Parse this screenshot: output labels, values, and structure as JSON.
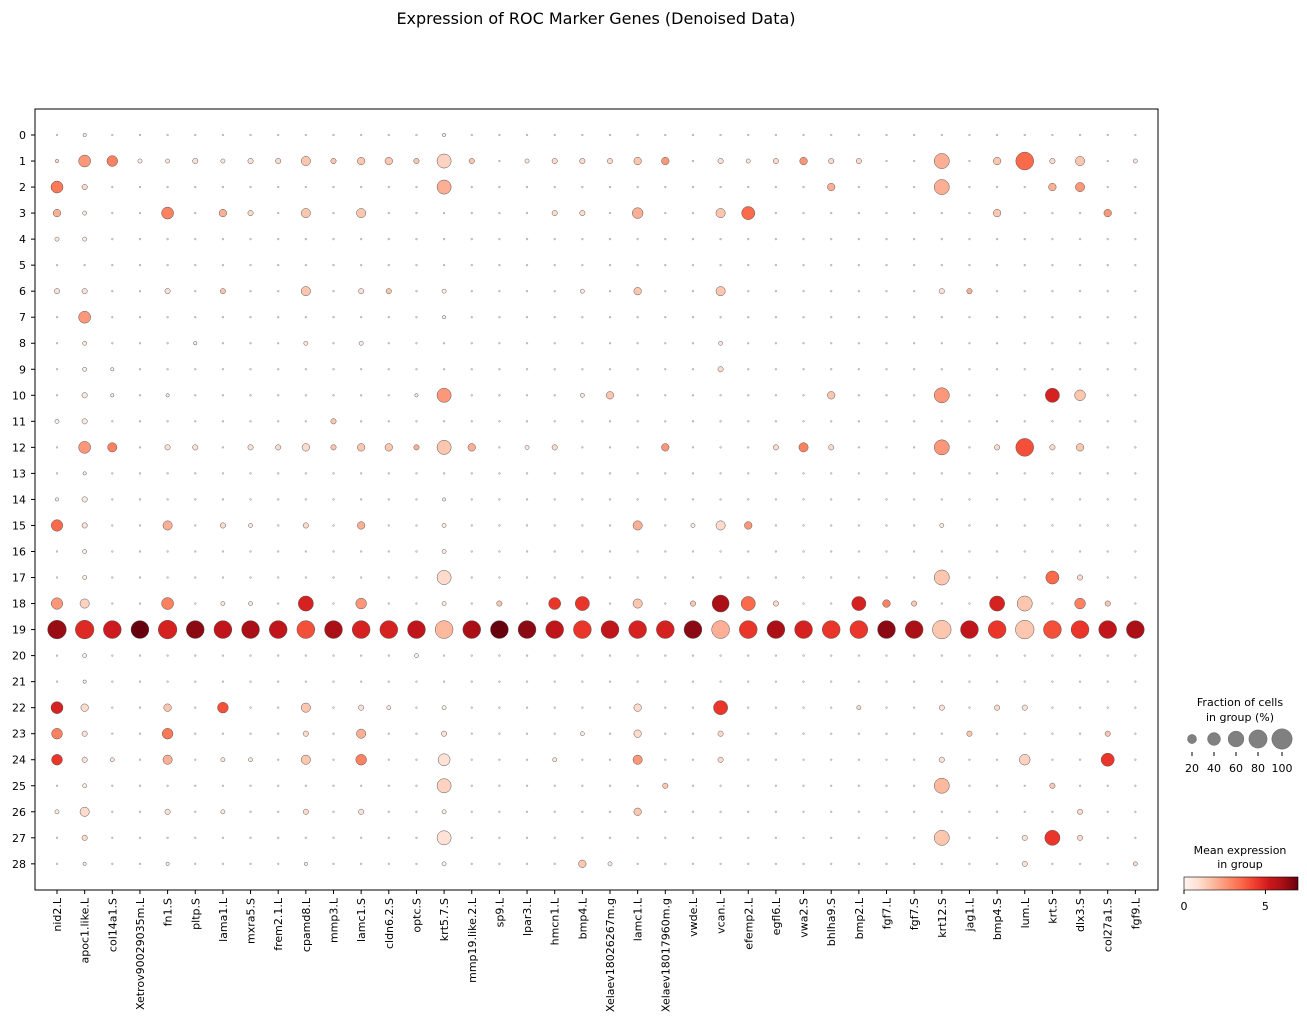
{
  "chart_data": {
    "type": "dotplot",
    "title": "Expression of ROC Marker Genes (Denoised Data)",
    "xlabel": "",
    "ylabel": "",
    "genes": [
      "nid2.L",
      "apoc1.like.L",
      "col14a1.S",
      "Xetrov90029035m.L",
      "fn1.S",
      "pltp.S",
      "lama1.L",
      "mxra5.S",
      "frem2.1.L",
      "cpamd8.L",
      "mmp3.L",
      "lamc1.S",
      "cldn6.2.S",
      "optc.S",
      "krt5.7.S",
      "mmp19.like.2.L",
      "sp9.L",
      "lpar3.L",
      "hmcn1.L",
      "bmp4.L",
      "Xelaev18026267m.g",
      "lamc1.L",
      "Xelaev18017960m.g",
      "vwde.L",
      "vcan.L",
      "efemp2.L",
      "egfl6.L",
      "vwa2.S",
      "bhlha9.S",
      "bmp2.L",
      "fgf7.L",
      "fgf7.S",
      "krt12.S",
      "jag1.L",
      "bmp4.S",
      "lum.L",
      "krt.S",
      "dlx3.S",
      "col27a1.S",
      "fgf9.L"
    ],
    "groups": [
      "0",
      "1",
      "2",
      "3",
      "4",
      "5",
      "6",
      "7",
      "8",
      "9",
      "10",
      "11",
      "12",
      "13",
      "14",
      "15",
      "16",
      "17",
      "18",
      "19",
      "20",
      "21",
      "22",
      "23",
      "24",
      "25",
      "26",
      "27",
      "28"
    ],
    "fraction_legend": {
      "title_line1": "Fraction of cells",
      "title_line2": "in group (%)",
      "sizes": [
        20,
        40,
        60,
        80,
        100
      ],
      "labels": [
        "20",
        "40",
        "60",
        "80",
        "100"
      ]
    },
    "color_legend": {
      "title_line1": "Mean expression",
      "title_line2": "in group",
      "range": [
        0,
        7
      ],
      "ticks": [
        0,
        5
      ],
      "tick_labels": [
        "0",
        "5"
      ],
      "colormap": "Reds"
    },
    "dot_max_fraction": 100,
    "dots": [
      [
        1,
        1,
        2,
        1
      ],
      [
        1,
        2,
        25,
        3.2
      ],
      [
        1,
        3,
        10,
        2
      ],
      [
        1,
        4,
        3,
        0.5
      ],
      [
        1,
        6,
        5,
        0.8
      ],
      [
        1,
        11,
        3,
        0.3
      ],
      [
        1,
        15,
        23,
        3.5
      ],
      [
        1,
        18,
        23,
        2.5
      ],
      [
        1,
        19,
        60,
        6.3
      ],
      [
        1,
        22,
        25,
        5
      ],
      [
        1,
        23,
        20,
        3
      ],
      [
        1,
        24,
        20,
        4.5
      ],
      [
        1,
        26,
        3,
        0.5
      ],
      [
        1,
        14,
        2,
        0.3
      ],
      [
        2,
        0,
        2,
        0.3
      ],
      [
        2,
        1,
        25,
        2.5
      ],
      [
        2,
        2,
        5,
        1
      ],
      [
        2,
        3,
        3,
        0.5
      ],
      [
        2,
        6,
        5,
        0.8
      ],
      [
        2,
        7,
        25,
        2.5
      ],
      [
        2,
        8,
        3,
        0.5
      ],
      [
        2,
        9,
        3,
        0.3
      ],
      [
        2,
        10,
        5,
        0.5
      ],
      [
        2,
        11,
        5,
        0.5
      ],
      [
        2,
        12,
        25,
        2.5
      ],
      [
        2,
        13,
        2,
        0.3
      ],
      [
        2,
        14,
        5,
        0.5
      ],
      [
        2,
        15,
        5,
        0.8
      ],
      [
        2,
        16,
        3,
        0.3
      ],
      [
        2,
        17,
        3,
        0.3
      ],
      [
        2,
        18,
        15,
        1.2
      ],
      [
        2,
        19,
        60,
        4.8
      ],
      [
        2,
        20,
        3,
        0.3
      ],
      [
        2,
        22,
        10,
        1
      ],
      [
        2,
        23,
        5,
        0.8
      ],
      [
        2,
        24,
        5,
        0.8
      ],
      [
        2,
        25,
        3,
        0.3
      ],
      [
        2,
        26,
        15,
        1
      ],
      [
        2,
        27,
        5,
        1
      ],
      [
        2,
        28,
        2,
        0.3
      ],
      [
        2,
        4,
        3,
        0.3
      ],
      [
        2,
        21,
        2,
        0.3
      ],
      [
        3,
        1,
        20,
        3
      ],
      [
        3,
        12,
        15,
        3
      ],
      [
        3,
        19,
        55,
        5.2
      ],
      [
        3,
        24,
        3,
        0.5
      ],
      [
        3,
        9,
        2,
        0.3
      ],
      [
        3,
        10,
        2,
        0.3
      ],
      [
        4,
        19,
        55,
        7
      ],
      [
        4,
        1,
        3,
        0.3
      ],
      [
        5,
        1,
        3,
        0.5
      ],
      [
        5,
        3,
        25,
        3
      ],
      [
        5,
        6,
        5,
        0.8
      ],
      [
        5,
        12,
        5,
        0.8
      ],
      [
        5,
        15,
        15,
        2
      ],
      [
        5,
        18,
        25,
        3
      ],
      [
        5,
        19,
        60,
        5
      ],
      [
        5,
        22,
        10,
        1.5
      ],
      [
        5,
        23,
        20,
        3.2
      ],
      [
        5,
        24,
        15,
        2
      ],
      [
        5,
        26,
        5,
        0.8
      ],
      [
        5,
        28,
        2,
        0.3
      ],
      [
        5,
        10,
        2,
        0.3
      ],
      [
        6,
        1,
        5,
        0.8
      ],
      [
        6,
        12,
        5,
        0.8
      ],
      [
        6,
        19,
        55,
        6.5
      ],
      [
        6,
        8,
        2,
        0.3
      ],
      [
        7,
        1,
        3,
        0.5
      ],
      [
        7,
        3,
        10,
        2
      ],
      [
        7,
        6,
        5,
        1.5
      ],
      [
        7,
        15,
        5,
        1
      ],
      [
        7,
        18,
        3,
        0.5
      ],
      [
        7,
        19,
        55,
        5.5
      ],
      [
        7,
        22,
        20,
        4
      ],
      [
        7,
        26,
        3,
        0.5
      ],
      [
        7,
        24,
        3,
        0.5
      ],
      [
        8,
        1,
        5,
        0.8
      ],
      [
        8,
        3,
        5,
        1
      ],
      [
        8,
        12,
        5,
        0.8
      ],
      [
        8,
        15,
        3,
        0.5
      ],
      [
        8,
        18,
        3,
        0.5
      ],
      [
        8,
        19,
        55,
        6
      ],
      [
        8,
        24,
        3,
        0.5
      ],
      [
        9,
        1,
        5,
        1
      ],
      [
        9,
        12,
        5,
        1
      ],
      [
        9,
        19,
        55,
        5.5
      ],
      [
        10,
        1,
        15,
        1.5
      ],
      [
        10,
        3,
        15,
        1.5
      ],
      [
        10,
        6,
        15,
        1.5
      ],
      [
        10,
        8,
        3,
        0.5
      ],
      [
        10,
        12,
        10,
        1
      ],
      [
        10,
        15,
        5,
        1
      ],
      [
        10,
        18,
        40,
        5
      ],
      [
        10,
        19,
        55,
        4
      ],
      [
        10,
        22,
        15,
        1.5
      ],
      [
        10,
        23,
        5,
        1
      ],
      [
        10,
        24,
        15,
        1.5
      ],
      [
        10,
        26,
        5,
        1
      ],
      [
        10,
        28,
        2,
        0.3
      ],
      [
        11,
        1,
        5,
        1.5
      ],
      [
        11,
        11,
        5,
        1.5
      ],
      [
        11,
        12,
        5,
        1.5
      ],
      [
        11,
        19,
        55,
        6
      ],
      [
        12,
        1,
        10,
        1.5
      ],
      [
        12,
        3,
        15,
        1.5
      ],
      [
        12,
        6,
        5,
        0.8
      ],
      [
        12,
        8,
        3,
        0.3
      ],
      [
        12,
        12,
        10,
        1.5
      ],
      [
        12,
        15,
        10,
        2
      ],
      [
        12,
        18,
        20,
        2.5
      ],
      [
        12,
        19,
        55,
        5
      ],
      [
        12,
        22,
        5,
        0.8
      ],
      [
        12,
        23,
        15,
        2
      ],
      [
        12,
        24,
        20,
        3
      ],
      [
        12,
        26,
        5,
        0.8
      ],
      [
        13,
        1,
        10,
        1.5
      ],
      [
        13,
        6,
        5,
        1.5
      ],
      [
        13,
        12,
        10,
        1.5
      ],
      [
        13,
        19,
        55,
        5
      ],
      [
        13,
        22,
        3,
        0.5
      ],
      [
        14,
        1,
        5,
        1.5
      ],
      [
        14,
        12,
        5,
        2
      ],
      [
        14,
        19,
        55,
        5.5
      ],
      [
        14,
        10,
        2,
        0.3
      ],
      [
        14,
        20,
        3,
        0.3
      ],
      [
        15,
        0,
        2,
        0.3
      ],
      [
        15,
        1,
        35,
        1.2
      ],
      [
        15,
        2,
        35,
        2
      ],
      [
        15,
        6,
        3,
        0.3
      ],
      [
        15,
        7,
        2,
        0.3
      ],
      [
        15,
        10,
        35,
        2.5
      ],
      [
        15,
        12,
        35,
        1.5
      ],
      [
        15,
        15,
        3,
        0.3
      ],
      [
        15,
        16,
        3,
        0.3
      ],
      [
        15,
        17,
        35,
        1
      ],
      [
        15,
        18,
        3,
        0.3
      ],
      [
        15,
        19,
        55,
        1.8
      ],
      [
        15,
        22,
        3,
        0.3
      ],
      [
        15,
        23,
        5,
        0.8
      ],
      [
        15,
        24,
        25,
        0.8
      ],
      [
        15,
        25,
        35,
        1.2
      ],
      [
        15,
        26,
        3,
        0.3
      ],
      [
        15,
        27,
        35,
        0.8
      ],
      [
        15,
        28,
        3,
        0.3
      ],
      [
        15,
        14,
        2,
        0.3
      ],
      [
        16,
        1,
        5,
        1.5
      ],
      [
        16,
        12,
        10,
        2
      ],
      [
        16,
        19,
        55,
        6
      ],
      [
        17,
        19,
        55,
        7
      ],
      [
        17,
        18,
        5,
        1.5
      ],
      [
        18,
        19,
        55,
        6.5
      ],
      [
        18,
        1,
        3,
        0.5
      ],
      [
        18,
        12,
        3,
        0.5
      ],
      [
        19,
        1,
        5,
        1
      ],
      [
        19,
        3,
        5,
        1
      ],
      [
        19,
        12,
        5,
        1
      ],
      [
        19,
        18,
        25,
        4.5
      ],
      [
        19,
        19,
        55,
        5.5
      ],
      [
        19,
        24,
        3,
        0.5
      ],
      [
        20,
        1,
        5,
        1
      ],
      [
        20,
        3,
        5,
        1
      ],
      [
        20,
        6,
        3,
        0.5
      ],
      [
        20,
        10,
        3,
        0.5
      ],
      [
        20,
        18,
        35,
        4.5
      ],
      [
        20,
        19,
        55,
        4.5
      ],
      [
        20,
        23,
        3,
        0.3
      ],
      [
        20,
        28,
        10,
        1.5
      ],
      [
        21,
        1,
        5,
        1
      ],
      [
        21,
        10,
        10,
        1.5
      ],
      [
        21,
        19,
        55,
        5.5
      ],
      [
        21,
        28,
        3,
        0.5
      ],
      [
        22,
        1,
        10,
        1.5
      ],
      [
        22,
        3,
        20,
        2
      ],
      [
        22,
        6,
        10,
        1.5
      ],
      [
        22,
        15,
        15,
        2
      ],
      [
        22,
        18,
        15,
        1.5
      ],
      [
        22,
        19,
        55,
        5
      ],
      [
        22,
        22,
        10,
        1
      ],
      [
        22,
        23,
        10,
        1
      ],
      [
        22,
        24,
        15,
        2.5
      ],
      [
        22,
        26,
        10,
        1.5
      ],
      [
        23,
        1,
        10,
        2.5
      ],
      [
        23,
        12,
        10,
        2.5
      ],
      [
        23,
        19,
        55,
        5
      ],
      [
        23,
        25,
        5,
        1.5
      ],
      [
        24,
        18,
        5,
        1.5
      ],
      [
        24,
        19,
        55,
        6.5
      ],
      [
        24,
        15,
        3,
        0.3
      ],
      [
        25,
        1,
        5,
        0.8
      ],
      [
        25,
        3,
        15,
        1.5
      ],
      [
        25,
        6,
        15,
        1.5
      ],
      [
        25,
        9,
        5,
        1
      ],
      [
        25,
        15,
        15,
        1
      ],
      [
        25,
        18,
        50,
        6
      ],
      [
        25,
        19,
        55,
        2
      ],
      [
        25,
        22,
        35,
        4.5
      ],
      [
        25,
        23,
        5,
        1
      ],
      [
        25,
        24,
        5,
        1
      ],
      [
        25,
        8,
        3,
        0.5
      ],
      [
        26,
        1,
        3,
        0.5
      ],
      [
        26,
        3,
        30,
        3.5
      ],
      [
        26,
        15,
        10,
        2.5
      ],
      [
        26,
        18,
        35,
        3.5
      ],
      [
        26,
        19,
        55,
        4.5
      ],
      [
        27,
        1,
        5,
        1
      ],
      [
        27,
        12,
        5,
        1
      ],
      [
        27,
        18,
        5,
        1
      ],
      [
        27,
        19,
        55,
        6
      ],
      [
        28,
        1,
        10,
        2.5
      ],
      [
        28,
        12,
        15,
        3
      ],
      [
        28,
        19,
        55,
        5
      ],
      [
        29,
        1,
        5,
        1
      ],
      [
        29,
        2,
        10,
        2
      ],
      [
        29,
        10,
        10,
        1.5
      ],
      [
        29,
        12,
        5,
        1
      ],
      [
        29,
        19,
        55,
        4.5
      ],
      [
        30,
        1,
        5,
        1
      ],
      [
        30,
        18,
        35,
        5
      ],
      [
        30,
        19,
        55,
        4.5
      ],
      [
        30,
        22,
        3,
        1
      ],
      [
        31,
        18,
        10,
        3
      ],
      [
        31,
        19,
        55,
        6.5
      ],
      [
        32,
        18,
        5,
        1.5
      ],
      [
        32,
        19,
        55,
        6
      ],
      [
        33,
        1,
        40,
        2
      ],
      [
        33,
        2,
        40,
        2
      ],
      [
        33,
        10,
        40,
        2.5
      ],
      [
        33,
        12,
        40,
        2.5
      ],
      [
        33,
        17,
        40,
        1.5
      ],
      [
        33,
        19,
        60,
        1.5
      ],
      [
        33,
        25,
        40,
        1.8
      ],
      [
        33,
        27,
        40,
        1.5
      ],
      [
        33,
        22,
        5,
        0.8
      ],
      [
        33,
        24,
        5,
        0.8
      ],
      [
        33,
        6,
        5,
        0.8
      ],
      [
        33,
        15,
        3,
        0.5
      ],
      [
        34,
        6,
        5,
        2
      ],
      [
        34,
        19,
        55,
        5.5
      ],
      [
        34,
        23,
        5,
        1.5
      ],
      [
        35,
        1,
        10,
        1.5
      ],
      [
        35,
        3,
        10,
        1.5
      ],
      [
        35,
        12,
        5,
        1
      ],
      [
        35,
        18,
        40,
        5
      ],
      [
        35,
        19,
        55,
        4.5
      ],
      [
        35,
        22,
        5,
        1
      ],
      [
        36,
        1,
        55,
        3.5
      ],
      [
        36,
        12,
        55,
        4
      ],
      [
        36,
        18,
        40,
        1.5
      ],
      [
        36,
        19,
        60,
        1.5
      ],
      [
        36,
        24,
        20,
        1.2
      ],
      [
        36,
        22,
        5,
        0.8
      ],
      [
        36,
        28,
        5,
        0.8
      ],
      [
        36,
        27,
        5,
        0.8
      ],
      [
        37,
        1,
        5,
        1
      ],
      [
        37,
        2,
        10,
        2
      ],
      [
        37,
        10,
        35,
        5
      ],
      [
        37,
        17,
        30,
        3.5
      ],
      [
        37,
        19,
        55,
        4
      ],
      [
        37,
        27,
        40,
        4.5
      ],
      [
        37,
        12,
        5,
        1
      ],
      [
        37,
        25,
        5,
        1.5
      ],
      [
        38,
        1,
        15,
        1.5
      ],
      [
        38,
        2,
        15,
        2.5
      ],
      [
        38,
        10,
        20,
        1.5
      ],
      [
        38,
        12,
        10,
        1.5
      ],
      [
        38,
        18,
        20,
        3
      ],
      [
        38,
        19,
        55,
        4.5
      ],
      [
        38,
        17,
        5,
        1
      ],
      [
        38,
        26,
        5,
        1
      ],
      [
        38,
        27,
        5,
        1
      ],
      [
        39,
        3,
        10,
        2.5
      ],
      [
        39,
        18,
        5,
        1.5
      ],
      [
        39,
        19,
        55,
        5.5
      ],
      [
        39,
        23,
        5,
        1.5
      ],
      [
        39,
        24,
        30,
        4.5
      ],
      [
        40,
        19,
        55,
        6
      ],
      [
        40,
        28,
        3,
        1
      ],
      [
        40,
        1,
        3,
        0.5
      ]
    ]
  }
}
